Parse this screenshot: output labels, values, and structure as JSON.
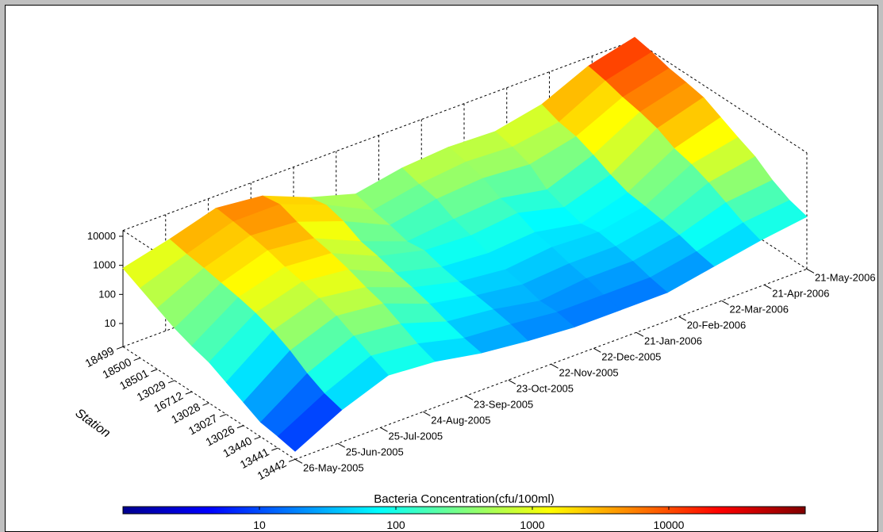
{
  "chart_data": {
    "type": "surface",
    "zlabel": "",
    "xlabel": "",
    "ylabel": "Station",
    "z_scale": "log",
    "z_ticks": [
      "10000",
      "1000",
      "100",
      "10"
    ],
    "stations": [
      "18499",
      "18500",
      "18501",
      "13029",
      "16712",
      "13028",
      "13027",
      "13026",
      "13440",
      "13441",
      "13442"
    ],
    "dates": [
      "26-May-2005",
      "25-Jun-2005",
      "25-Jul-2005",
      "24-Aug-2005",
      "23-Sep-2005",
      "23-Oct-2005",
      "22-Nov-2005",
      "22-Dec-2005",
      "21-Jan-2006",
      "20-Feb-2006",
      "22-Mar-2006",
      "21-Apr-2006",
      "21-May-2006"
    ],
    "z_values": [
      [
        800,
        2000,
        6000,
        4000,
        900,
        300,
        600,
        800,
        700,
        1500,
        8000,
        20000
      ],
      [
        400,
        1500,
        5000,
        5000,
        1200,
        200,
        400,
        600,
        500,
        900,
        6000,
        15000
      ],
      [
        200,
        1200,
        4000,
        3000,
        800,
        150,
        300,
        400,
        300,
        700,
        4000,
        10000
      ],
      [
        100,
        900,
        3000,
        2000,
        400,
        100,
        150,
        200,
        100,
        400,
        3000,
        8000
      ],
      [
        60,
        700,
        2000,
        1500,
        300,
        120,
        100,
        150,
        60,
        200,
        2000,
        6000
      ],
      [
        40,
        500,
        1500,
        1000,
        200,
        80,
        60,
        80,
        40,
        120,
        1000,
        3000
      ],
      [
        20,
        300,
        1000,
        600,
        150,
        60,
        40,
        60,
        50,
        100,
        700,
        1500
      ],
      [
        10,
        150,
        600,
        400,
        100,
        50,
        30,
        40,
        40,
        80,
        400,
        800
      ],
      [
        5,
        60,
        300,
        200,
        60,
        40,
        20,
        30,
        30,
        60,
        200,
        300
      ],
      [
        4,
        30,
        150,
        100,
        40,
        30,
        20,
        20,
        20,
        40,
        100,
        150
      ],
      [
        3,
        20,
        80,
        60,
        30,
        20,
        15,
        15,
        15,
        30,
        60,
        100
      ]
    ],
    "colorbar": {
      "label": "Bacteria Concentration(cfu/100ml)",
      "ticks": [
        "10",
        "100",
        "1000",
        "10000"
      ],
      "range": [
        1,
        100000
      ]
    },
    "grid": true
  }
}
